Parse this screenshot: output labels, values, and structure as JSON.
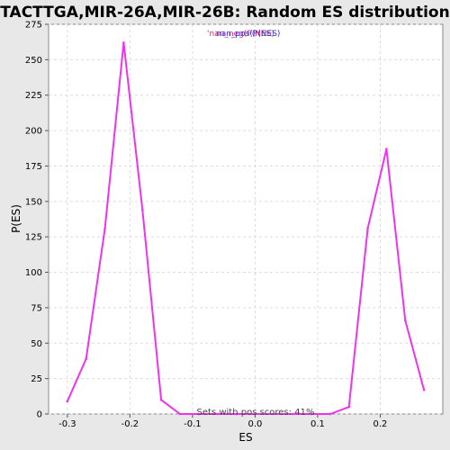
{
  "chart_data": {
    "type": "line",
    "title": "TACTTGA,MIR-26A,MIR-26B: Random ES distribution",
    "xlabel": "ES",
    "ylabel": "P(ES)",
    "xlim": [
      -0.33,
      0.3
    ],
    "ylim": [
      0,
      275
    ],
    "x_ticks": [
      -0.3,
      -0.2,
      -0.1,
      0.0,
      0.1,
      0.2
    ],
    "x_tick_labels": [
      "-0.3",
      "-0.2",
      "-0.1",
      "0.0",
      "0.1",
      "0.2"
    ],
    "y_ticks": [
      0,
      25,
      50,
      75,
      100,
      125,
      150,
      175,
      200,
      225,
      250,
      275
    ],
    "y_tick_labels": [
      "0",
      "25",
      "50",
      "75",
      "100",
      "125",
      "150",
      "175",
      "200",
      "225",
      "250",
      "275"
    ],
    "grid": true,
    "legend": {
      "position": "top-center",
      "entries": [
        {
          "text": "'nan_neg(P(NES)",
          "color": "#e0206a"
        },
        {
          "text": "nan_pos(P(NES)",
          "color": "#2030e0"
        }
      ]
    },
    "annotation": "Sets with pos scores: 41%",
    "series": [
      {
        "color": "#ee33ee",
        "x": [
          -0.3,
          -0.27,
          -0.24,
          -0.21,
          -0.18,
          -0.15,
          -0.12,
          -0.09,
          -0.06,
          -0.03,
          0.0,
          0.03,
          0.06,
          0.09,
          0.12,
          0.15,
          0.18,
          0.21,
          0.24,
          0.27
        ],
        "y": [
          9,
          39,
          131,
          262,
          144,
          10,
          0,
          0,
          0,
          0,
          0,
          0,
          0,
          0,
          0,
          5,
          131,
          187,
          66,
          17
        ]
      }
    ]
  }
}
